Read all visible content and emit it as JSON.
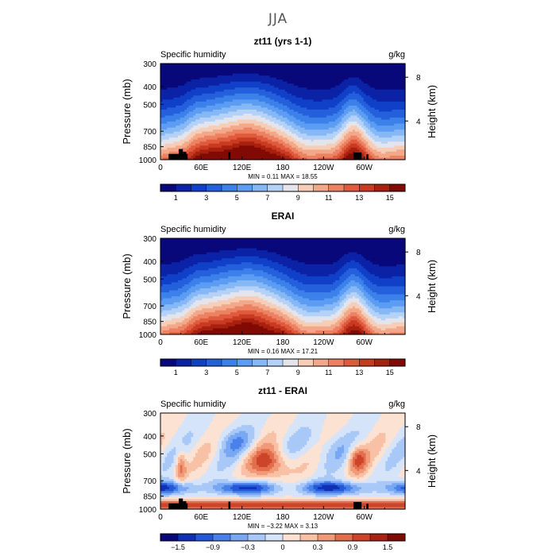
{
  "figure": {
    "title": "JJA"
  },
  "chart_data": [
    {
      "type": "heatmap",
      "title": "zt11 (yrs 1-1)",
      "left_label": "Specific humidity",
      "units": "g/kg",
      "ylabel": "Pressure (mb)",
      "ylabel_right": "Height (km)",
      "y_ticks": [
        "300",
        "400",
        "500",
        "700",
        "850",
        "1000"
      ],
      "y_ticks_right": [
        "8",
        "4"
      ],
      "x_ticks": [
        "0",
        "60E",
        "120E",
        "180",
        "120W",
        "60W"
      ],
      "stats": "MIN =    0.11   MAX =   18.55",
      "colorbar_labels": [
        "1",
        "3",
        "5",
        "7",
        "9",
        "11",
        "13",
        "15"
      ],
      "colorbar_range": [
        0,
        16
      ],
      "levels": 16,
      "field": "humidity",
      "terrain": true
    },
    {
      "type": "heatmap",
      "title": "ERAI",
      "left_label": "Specific humidity",
      "units": "g/kg",
      "ylabel": "Pressure (mb)",
      "ylabel_right": "Height (km)",
      "y_ticks": [
        "300",
        "400",
        "500",
        "700",
        "850",
        "1000"
      ],
      "y_ticks_right": [
        "8",
        "4"
      ],
      "x_ticks": [
        "0",
        "60E",
        "120E",
        "180",
        "120W",
        "60W"
      ],
      "stats": "MIN =    0.16   MAX =   17.21",
      "colorbar_labels": [
        "1",
        "3",
        "5",
        "7",
        "9",
        "11",
        "13",
        "15"
      ],
      "colorbar_range": [
        0,
        16
      ],
      "levels": 16,
      "field": "humidity",
      "terrain": false
    },
    {
      "type": "heatmap",
      "title": "zt11 - ERAI",
      "left_label": "Specific humidity",
      "units": "g/kg",
      "ylabel": "Pressure (mb)",
      "ylabel_right": "Height (km)",
      "y_ticks": [
        "300",
        "400",
        "500",
        "700",
        "850",
        "1000"
      ],
      "y_ticks_right": [
        "8",
        "4"
      ],
      "x_ticks": [
        "0",
        "60E",
        "120E",
        "180",
        "120W",
        "60W"
      ],
      "stats": "MIN =  −3.22   MAX =    3.13",
      "colorbar_labels": [
        "−1.5",
        "−0.9",
        "−0.3",
        "0",
        "0.3",
        "0.9",
        "1.5"
      ],
      "colorbar_range": [
        -2,
        2
      ],
      "levels": 14,
      "field": "difference",
      "terrain": true
    }
  ],
  "colors": {
    "humidity_scale": [
      "#08087a",
      "#0b22a6",
      "#1040c8",
      "#2460dc",
      "#3c80ea",
      "#5c9cf2",
      "#86b8f6",
      "#b4d2f8",
      "#e4e4ec",
      "#f6cdb6",
      "#f4a88a",
      "#ec8262",
      "#e05a3e",
      "#c83a22",
      "#a8200e",
      "#820a04"
    ],
    "difference_scale": [
      "#08087a",
      "#1030b4",
      "#2458d8",
      "#4a80ea",
      "#78a8f4",
      "#a8c8f8",
      "#d6e4fa",
      "#fbe2d2",
      "#f8c0a4",
      "#f09a78",
      "#e26e4e",
      "#cc442a",
      "#aa2212",
      "#800a04"
    ],
    "terrain": "#000000"
  }
}
